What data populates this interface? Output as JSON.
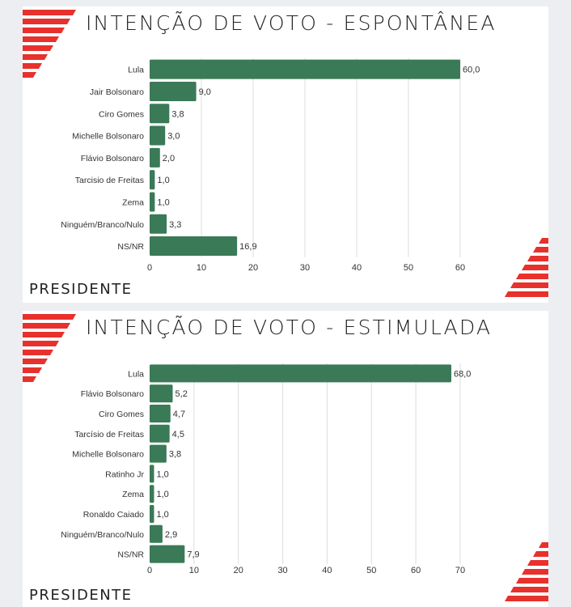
{
  "colors": {
    "bar": "#3a7a57",
    "grid": "#dddddd",
    "accent": "#e8302c",
    "text": "#333333"
  },
  "chart_data": [
    {
      "type": "bar",
      "orientation": "horizontal",
      "title": "INTENÇÃO DE VOTO - ESPONTÂNEA",
      "footer": "PRESIDENTE",
      "categories": [
        "Lula",
        "Jair Bolsonaro",
        "Ciro Gomes",
        "Michelle Bolsonaro",
        "Flávio Bolsonaro",
        "Tarcisio de Freitas",
        "Zema",
        "Ninguém/Branco/Nulo",
        "NS/NR"
      ],
      "values": [
        60.0,
        9.0,
        3.8,
        3.0,
        2.0,
        1.0,
        1.0,
        3.3,
        16.9
      ],
      "value_labels": [
        "60,0",
        "9,0",
        "3,8",
        "3,0",
        "2,0",
        "1,0",
        "1,0",
        "3,3",
        "16,9"
      ],
      "xticks": [
        "0",
        "10",
        "20",
        "30",
        "40",
        "50",
        "60"
      ],
      "xlim": [
        0,
        60
      ],
      "grid": true,
      "xlabel": "",
      "ylabel": ""
    },
    {
      "type": "bar",
      "orientation": "horizontal",
      "title": "INTENÇÃO DE VOTO - ESTIMULADA",
      "footer": "PRESIDENTE",
      "categories": [
        "Lula",
        "Flávio Bolsonaro",
        "Ciro Gomes",
        "Tarcísio de Freitas",
        "Michelle Bolsonaro",
        "Ratinho Jr",
        "Zema",
        "Ronaldo Caiado",
        "Ninguém/Branco/Nulo",
        "NS/NR"
      ],
      "values": [
        68.0,
        5.2,
        4.7,
        4.5,
        3.8,
        1.0,
        1.0,
        1.0,
        2.9,
        7.9
      ],
      "value_labels": [
        "68,0",
        "5,2",
        "4,7",
        "4,5",
        "3,8",
        "1,0",
        "1,0",
        "1,0",
        "2,9",
        "7,9"
      ],
      "xticks": [
        "0",
        "10",
        "20",
        "30",
        "40",
        "50",
        "60",
        "70"
      ],
      "xlim": [
        0,
        70
      ],
      "grid": true,
      "xlabel": "",
      "ylabel": ""
    }
  ]
}
